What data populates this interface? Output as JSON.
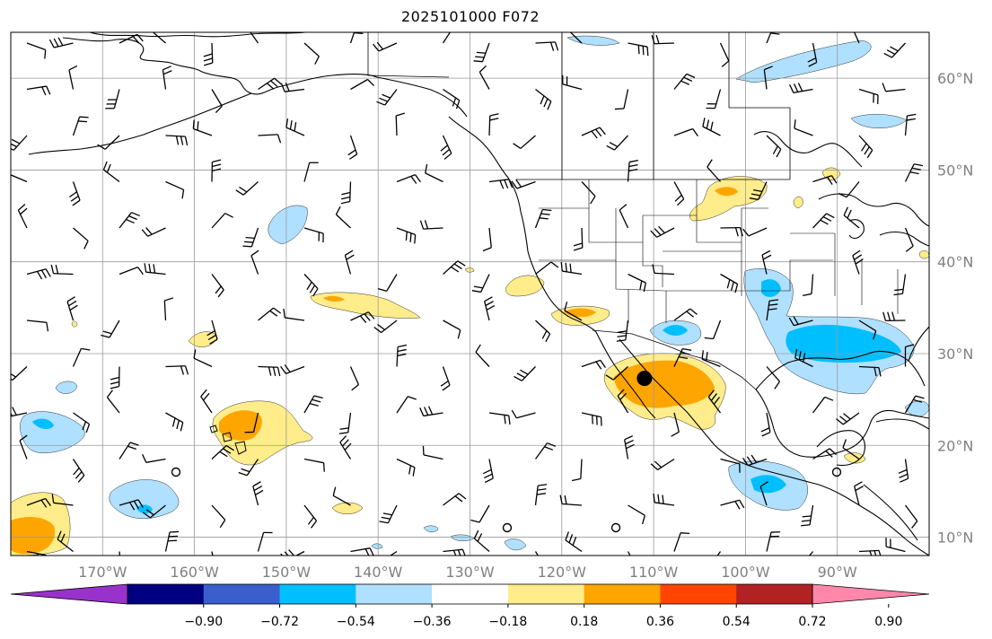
{
  "title": "2025101000 F072",
  "map": {
    "lon_range": [
      -180,
      -80
    ],
    "lat_range": [
      8,
      65
    ],
    "gridlines": true,
    "longitude_labels": [
      {
        "lon": -170,
        "label": "170°W"
      },
      {
        "lon": -160,
        "label": "160°W"
      },
      {
        "lon": -150,
        "label": "150°W"
      },
      {
        "lon": -140,
        "label": "140°W"
      },
      {
        "lon": -130,
        "label": "130°W"
      },
      {
        "lon": -120,
        "label": "120°W"
      },
      {
        "lon": -110,
        "label": "110°W"
      },
      {
        "lon": -100,
        "label": "100°W"
      },
      {
        "lon": -90,
        "label": "90°W"
      }
    ],
    "latitude_labels": [
      {
        "lat": 60,
        "label": "60°N"
      },
      {
        "lat": 50,
        "label": "50°N"
      },
      {
        "lat": 40,
        "label": "40°N"
      },
      {
        "lat": 30,
        "label": "30°N"
      },
      {
        "lat": 20,
        "label": "20°N"
      },
      {
        "lat": 10,
        "label": "10°N"
      }
    ],
    "marker": {
      "lon": -111,
      "lat": 27.3
    }
  },
  "colorbar": {
    "colors": [
      "#9932cc",
      "#000080",
      "#3a5fcd",
      "#00bfff",
      "#b0e0ff",
      "#ffffff",
      "#ffec8b",
      "#ffa500",
      "#ff4500",
      "#b22222",
      "#ff88aa"
    ],
    "tick_labels": [
      "−0.90",
      "−0.72",
      "−0.54",
      "−0.36",
      "−0.18",
      "0.18",
      "0.36",
      "0.54",
      "0.72",
      "0.90"
    ]
  },
  "colors": {
    "grid": "#9a9a9a",
    "axis_label": "#808080",
    "coast": "#000000"
  }
}
